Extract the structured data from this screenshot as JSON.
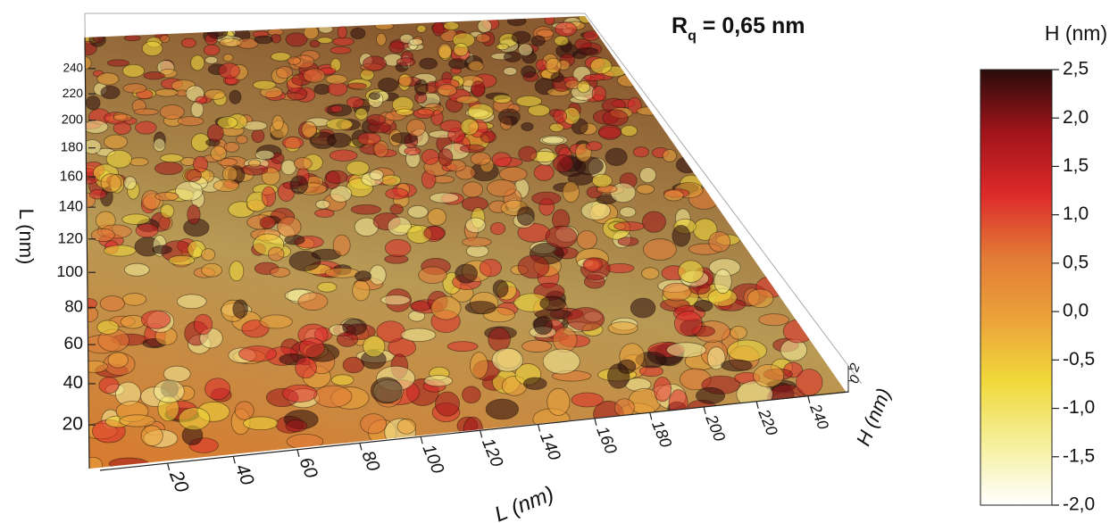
{
  "chart_data": {
    "type": "surface3d",
    "annotation": {
      "main": "R",
      "sub": "q",
      "rest": " = 0,65 nm"
    },
    "xlabel": "L (nm)",
    "ylabel": "L (nm)",
    "zlabel": "H (nm)",
    "xlim": [
      0,
      256
    ],
    "xticks": [
      20,
      40,
      60,
      80,
      100,
      120,
      140,
      160,
      180,
      200,
      220,
      240
    ],
    "ylim": [
      0,
      256
    ],
    "yticks": [
      20,
      40,
      60,
      80,
      100,
      120,
      140,
      160,
      180,
      200,
      220,
      240
    ],
    "zlim": [
      -2,
      2.5
    ],
    "zticks": [
      0,
      2
    ],
    "colorbar": {
      "title": "H (nm)",
      "colors": [
        "#ffffff",
        "#f5ef9a",
        "#f0d83a",
        "#eba23a",
        "#e27a36",
        "#dd2a2a",
        "#a0141a",
        "#2a0c0c"
      ],
      "ticks": [
        {
          "value": 2.5,
          "label": "2,5"
        },
        {
          "value": 2,
          "label": "2,0"
        },
        {
          "value": 1.5,
          "label": "1,5"
        },
        {
          "value": 1,
          "label": "1,0"
        },
        {
          "value": 0.5,
          "label": "0,5"
        },
        {
          "value": 0,
          "label": "0,0"
        },
        {
          "value": -0.5,
          "label": "-0,5"
        },
        {
          "value": -1,
          "label": "-1,0"
        },
        {
          "value": -1.5,
          "label": "-1,5"
        },
        {
          "value": -2,
          "label": "-2,0"
        }
      ]
    }
  }
}
